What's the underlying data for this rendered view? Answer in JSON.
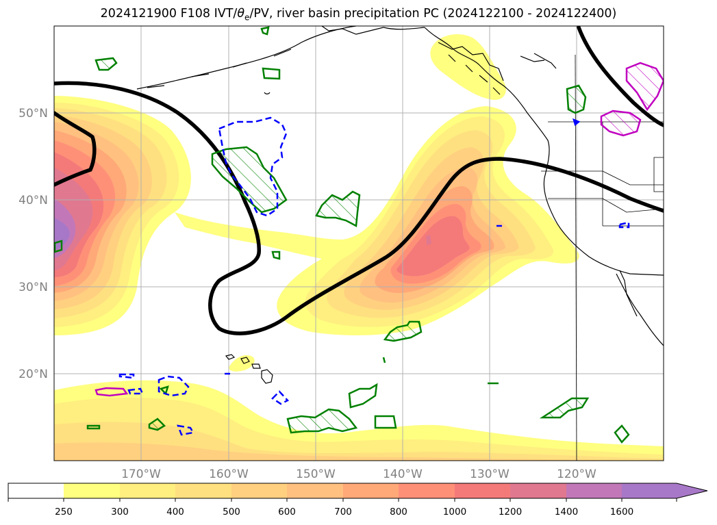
{
  "title": {
    "prefix": "2024121900 F108 IVT/",
    "theta": "θ",
    "theta_sub": "e",
    "suffix": "/PV, river basin precipitation PC (2024122100 - 2024122400)"
  },
  "colors": {
    "ivt_250": "#ffff80",
    "ivt_300": "#ffee80",
    "ivt_400": "#ffe080",
    "ivt_500": "#ffd080",
    "ivt_600": "#ffc080",
    "ivt_700": "#ffa878",
    "ivt_800": "#ff9078",
    "ivt_1000": "#f47a7a",
    "ivt_1200": "#e07890",
    "ivt_1400": "#c278b8",
    "ivt_1600": "#a878c8",
    "pv_contour": "#000000",
    "precip_green": "#008000",
    "precip_blue": "#0000ff",
    "precip_magenta": "#c000c0",
    "coastline": "#000000",
    "grid": "#b0b0b0"
  },
  "map": {
    "lon_ticks": [
      "170°W",
      "160°W",
      "150°W",
      "140°W",
      "130°W",
      "120°W"
    ],
    "lat_ticks": [
      "50°N",
      "40°N",
      "30°N",
      "20°N"
    ]
  },
  "colorbar": {
    "levels": [
      "250",
      "300",
      "400",
      "500",
      "600",
      "700",
      "800",
      "1000",
      "1200",
      "1400",
      "1600"
    ],
    "extend": "max"
  }
}
